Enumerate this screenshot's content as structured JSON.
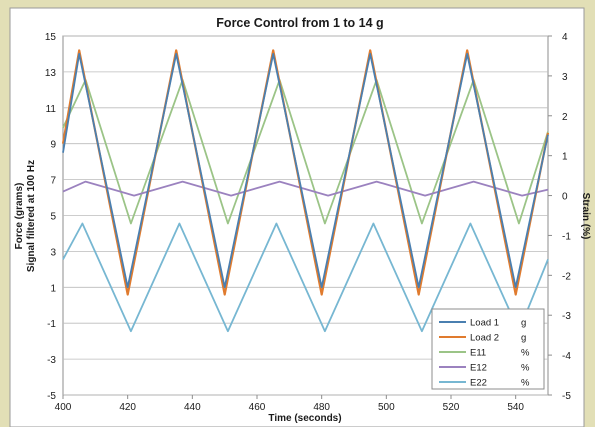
{
  "chart_data": {
    "type": "line",
    "title": "Force Control from 1 to 14 g",
    "xlabel": "Time (seconds)",
    "ylabel_left_line1": "Force (grams)",
    "ylabel_left_line2": "Signal filtered at 100 Hz",
    "ylabel_right": "Strain (%)",
    "xlim": [
      400,
      550
    ],
    "ylim_left": [
      -5,
      15
    ],
    "ylim_right": [
      -5,
      4
    ],
    "x_ticks": [
      "400",
      "420",
      "440",
      "460",
      "480",
      "500",
      "520",
      "540"
    ],
    "y_ticks_left": [
      "-5",
      "-3",
      "-1",
      "1",
      "3",
      "5",
      "7",
      "9",
      "11",
      "13",
      "15"
    ],
    "y_ticks_right": [
      "-5",
      "-4",
      "-3",
      "-2",
      "-1",
      "0",
      "1",
      "2",
      "3",
      "4"
    ],
    "grid": "horizontal",
    "legend_position": "bottom-right",
    "legend": [
      {
        "name": "Load 1",
        "unit": "g",
        "color": "#4a7fb0"
      },
      {
        "name": "Load 2",
        "unit": "g",
        "color": "#e07b2e"
      },
      {
        "name": "E11",
        "unit": "%",
        "color": "#9bc487"
      },
      {
        "name": "E12",
        "unit": "%",
        "color": "#9b82bf"
      },
      {
        "name": "E22",
        "unit": "%",
        "color": "#77b7d2"
      }
    ],
    "series": [
      {
        "name": "Load 1 g",
        "axis": "left",
        "color": "#4a7fb0",
        "x": [
          400,
          405,
          420,
          435,
          450,
          465,
          480,
          495,
          510,
          525,
          540,
          550
        ],
        "y": [
          8.5,
          14.0,
          1.0,
          14.0,
          1.0,
          14.0,
          1.0,
          14.0,
          1.0,
          14.0,
          1.0,
          9.5
        ]
      },
      {
        "name": "Load 2 g",
        "axis": "left",
        "color": "#e07b2e",
        "x": [
          400,
          405,
          420,
          435,
          450,
          465,
          480,
          495,
          510,
          525,
          540,
          550
        ],
        "y": [
          9.0,
          14.2,
          0.6,
          14.2,
          0.6,
          14.2,
          0.6,
          14.2,
          0.6,
          14.2,
          0.6,
          9.6
        ]
      },
      {
        "name": "E11 %",
        "axis": "right",
        "color": "#9bc487",
        "x": [
          400,
          407,
          421,
          437,
          451,
          467,
          481,
          497,
          511,
          527,
          541,
          550
        ],
        "y": [
          1.7,
          2.9,
          -0.7,
          2.9,
          -0.7,
          2.9,
          -0.7,
          2.9,
          -0.7,
          2.9,
          -0.7,
          1.6
        ]
      },
      {
        "name": "E12 %",
        "axis": "right",
        "color": "#9b82bf",
        "x": [
          400,
          407,
          422,
          437,
          452,
          467,
          482,
          497,
          512,
          527,
          542,
          550
        ],
        "y": [
          0.1,
          0.35,
          0.0,
          0.35,
          0.0,
          0.35,
          0.0,
          0.35,
          0.0,
          0.35,
          0.0,
          0.15
        ]
      },
      {
        "name": "E22 %",
        "axis": "right",
        "color": "#77b7d2",
        "x": [
          400,
          406,
          421,
          436,
          451,
          466,
          481,
          496,
          511,
          526,
          541,
          550
        ],
        "y": [
          -1.6,
          -0.7,
          -3.4,
          -0.7,
          -3.4,
          -0.7,
          -3.4,
          -0.7,
          -3.4,
          -0.7,
          -3.4,
          -1.6
        ]
      }
    ]
  }
}
